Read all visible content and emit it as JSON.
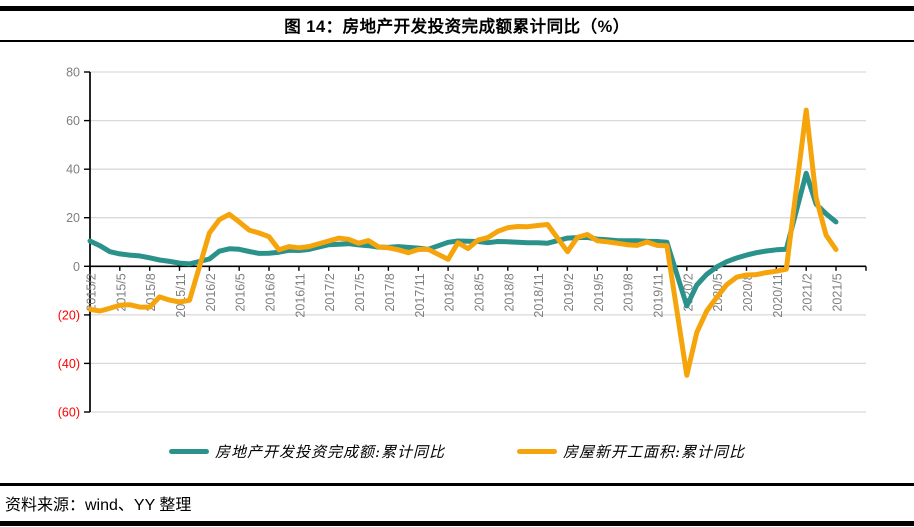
{
  "title": "图 14：房地产开发投资完成额累计同比（%）",
  "footer": {
    "source_text": "资料来源：wind、YY 整理"
  },
  "colors": {
    "investment_line": "#2A928B",
    "new_starts_line": "#F6A40B",
    "axis_label_gray": "#7F7F7F",
    "negative_label_red": "#FF0000",
    "gridline": "#D9D9D9",
    "axis_black": "#000000"
  },
  "legend": [
    {
      "label": "房地产开发投资完成额:累计同比",
      "series": "investment"
    },
    {
      "label": "房屋新开工面积:累计同比",
      "series": "new_starts"
    }
  ],
  "chart_data": {
    "type": "line",
    "title": "图 14：房地产开发投资完成额累计同比（%）",
    "xlabel": "",
    "ylabel": "",
    "ylim": [
      -60,
      80
    ],
    "grid": "horizontal",
    "legend_position": "bottom",
    "x": [
      "2015/2",
      "2015/3",
      "2015/4",
      "2015/5",
      "2015/6",
      "2015/7",
      "2015/8",
      "2015/9",
      "2015/10",
      "2015/11",
      "2015/12",
      "2016/2",
      "2016/3",
      "2016/4",
      "2016/5",
      "2016/6",
      "2016/7",
      "2016/8",
      "2016/9",
      "2016/10",
      "2016/11",
      "2016/12",
      "2017/2",
      "2017/3",
      "2017/4",
      "2017/5",
      "2017/6",
      "2017/7",
      "2017/8",
      "2017/9",
      "2017/10",
      "2017/11",
      "2017/12",
      "2018/2",
      "2018/3",
      "2018/4",
      "2018/5",
      "2018/6",
      "2018/7",
      "2018/8",
      "2018/9",
      "2018/10",
      "2018/11",
      "2018/12",
      "2019/2",
      "2019/3",
      "2019/4",
      "2019/5",
      "2019/6",
      "2019/7",
      "2019/8",
      "2019/9",
      "2019/10",
      "2019/11",
      "2019/12",
      "2020/2",
      "2020/3",
      "2020/4",
      "2020/5",
      "2020/6",
      "2020/7",
      "2020/8",
      "2020/9",
      "2020/10",
      "2020/11",
      "2020/12",
      "2021/2",
      "2021/3",
      "2021/4",
      "2021/5"
    ],
    "series": [
      {
        "name": "房地产开发投资完成额:累计同比",
        "data_name": "investment-line",
        "color": "#2A928B",
        "values": [
          10.4,
          8.5,
          6.0,
          5.1,
          4.6,
          4.3,
          3.5,
          2.6,
          2.0,
          1.3,
          1.0,
          3.0,
          6.2,
          7.2,
          7.0,
          6.1,
          5.3,
          5.4,
          5.8,
          6.6,
          6.5,
          6.9,
          8.9,
          9.1,
          9.3,
          8.8,
          8.5,
          7.9,
          7.8,
          8.1,
          7.8,
          7.5,
          7.0,
          9.9,
          10.4,
          10.3,
          10.2,
          9.7,
          10.2,
          10.1,
          9.9,
          9.7,
          9.7,
          9.5,
          11.6,
          11.8,
          11.9,
          11.2,
          10.9,
          10.6,
          10.5,
          10.5,
          10.3,
          10.2,
          9.9,
          -16.3,
          -7.7,
          -3.3,
          -0.3,
          1.9,
          3.4,
          4.6,
          5.6,
          6.3,
          6.8,
          7.0,
          38.3,
          25.6,
          21.6,
          18.3
        ]
      },
      {
        "name": "房屋新开工面积:累计同比",
        "data_name": "new-starts-line",
        "color": "#F6A40B",
        "values": [
          -17.7,
          -18.4,
          -17.3,
          -16.0,
          -15.8,
          -16.8,
          -16.8,
          -12.6,
          -13.9,
          -14.7,
          -14.0,
          13.7,
          19.2,
          21.4,
          18.3,
          14.9,
          13.7,
          12.2,
          6.8,
          8.1,
          7.6,
          8.1,
          10.4,
          11.6,
          11.1,
          9.5,
          10.6,
          8.0,
          7.6,
          6.8,
          5.6,
          6.9,
          7.0,
          2.9,
          9.7,
          7.3,
          10.8,
          11.8,
          14.4,
          15.9,
          16.4,
          16.3,
          16.8,
          17.2,
          6.0,
          11.9,
          13.1,
          10.5,
          10.1,
          9.5,
          8.9,
          8.6,
          10.0,
          8.6,
          8.5,
          -44.9,
          -27.2,
          -18.4,
          -12.8,
          -7.6,
          -4.5,
          -3.6,
          -3.4,
          -2.6,
          -2.0,
          -1.2,
          64.3,
          28.2,
          12.8,
          6.9
        ]
      }
    ],
    "x_tick_labels": [
      "2015/2",
      "2015/5",
      "2015/8",
      "2015/11",
      "2016/2",
      "2016/5",
      "2016/8",
      "2016/11",
      "2017/2",
      "2017/5",
      "2017/8",
      "2017/11",
      "2018/2",
      "2018/5",
      "2018/8",
      "2018/11",
      "2019/2",
      "2019/5",
      "2019/8",
      "2019/11",
      "2020/2",
      "2020/5",
      "2020/8",
      "2020/11",
      "2021/2",
      "2021/5"
    ],
    "y_ticks": [
      {
        "label": "80",
        "value": 80
      },
      {
        "label": "60",
        "value": 60
      },
      {
        "label": "40",
        "value": 40
      },
      {
        "label": "20",
        "value": 20
      },
      {
        "label": "0",
        "value": 0
      },
      {
        "label": "(20)",
        "value": -20
      },
      {
        "label": "(40)",
        "value": -40
      },
      {
        "label": "(60)",
        "value": -60
      }
    ]
  }
}
